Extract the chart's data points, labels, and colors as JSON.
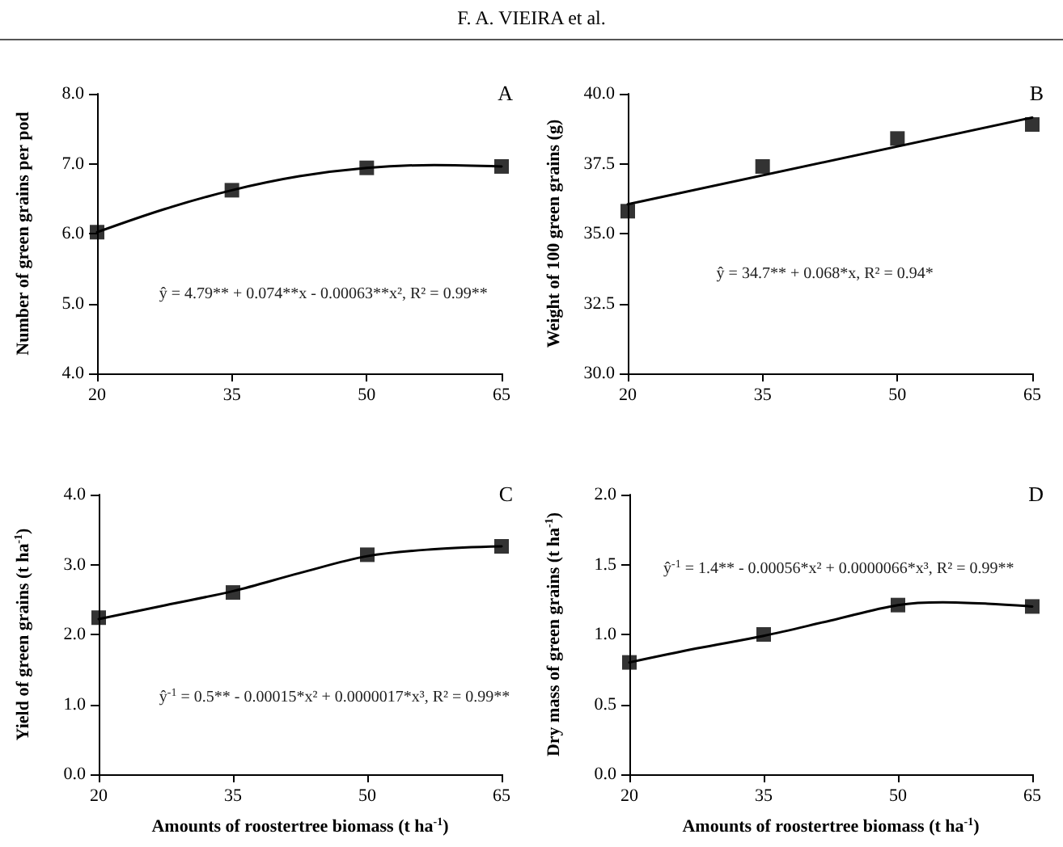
{
  "chart_data": [
    {
      "type": "scatter",
      "title": "A",
      "ylabel": "Number of green grains per pod",
      "annotations": [
        "F. A. VIEIRA et al.",
        "ŷ = 4.79** + 0.074**x - 0.00063**x², R² = 0.99**"
      ],
      "xlim": [
        20,
        65
      ],
      "xticks": [
        20,
        35,
        50,
        65
      ],
      "ylim": [
        4,
        8
      ],
      "yticks": [
        {
          "value": 4,
          "label": "4.0"
        },
        {
          "value": 5,
          "label": "5.0"
        },
        {
          "value": 6,
          "label": "6.0"
        },
        {
          "value": 7,
          "label": "7.0"
        },
        {
          "value": 8,
          "label": "8.0"
        }
      ],
      "grid": false,
      "series": [
        {
          "marker": "square",
          "color": "#000000",
          "x": [
            20,
            35,
            50,
            65
          ],
          "values": [
            6.02,
            6.62,
            6.94,
            6.96
          ]
        },
        {
          "type": "line",
          "marker": "none",
          "line_style": "solid",
          "color": "#000000",
          "x": [
            20,
            27.5,
            35,
            42.5,
            50,
            57.5,
            65
          ],
          "values": [
            6.02,
            6.35,
            6.62,
            6.82,
            6.94,
            6.98,
            6.96
          ]
        }
      ]
    },
    {
      "type": "scatter",
      "title": "B",
      "ylabel": "Weight of 100 green grains (g)",
      "annotations": [
        "ŷ = 34.7** + 0.068*x, R² = 0.94*"
      ],
      "xlim": [
        20,
        65
      ],
      "xticks": [
        20,
        35,
        50,
        65
      ],
      "ylim": [
        30,
        40
      ],
      "yticks": [
        {
          "value": 30,
          "label": "30.0"
        },
        32.5,
        {
          "value": 35,
          "label": "35.0"
        },
        37.5,
        {
          "value": 40,
          "label": "40.0"
        }
      ],
      "grid": false,
      "series": [
        {
          "marker": "square",
          "color": "#000000",
          "x": [
            20,
            35,
            50,
            65
          ],
          "values": [
            35.8,
            37.4,
            38.4,
            38.9
          ]
        },
        {
          "type": "line",
          "marker": "none",
          "line_style": "solid",
          "color": "#000000",
          "x": [
            20,
            65
          ],
          "values": [
            36.05,
            39.15
          ]
        }
      ]
    },
    {
      "type": "scatter",
      "title": "C",
      "xlabel": "Amounts of roostertree biomass (t ha$^{-1}$)",
      "ylabel": "Yield of green grains (t ha$^{-1}$)",
      "annotations": [
        "ŷ$^{-1}$ = 0.5** - 0.00015*x² + 0.0000017*x³, R² = 0.99**"
      ],
      "xlim": [
        20,
        65
      ],
      "xticks": [
        20,
        35,
        50,
        65
      ],
      "ylim": [
        0,
        4
      ],
      "yticks": [
        {
          "value": 0,
          "label": "0.0"
        },
        {
          "value": 1,
          "label": "1.0"
        },
        {
          "value": 2,
          "label": "2.0"
        },
        {
          "value": 3,
          "label": "3.0"
        },
        {
          "value": 4,
          "label": "4.0"
        }
      ],
      "grid": false,
      "series": [
        {
          "marker": "square",
          "color": "#000000",
          "x": [
            20,
            35,
            50,
            65
          ],
          "values": [
            2.24,
            2.6,
            3.14,
            3.26
          ]
        },
        {
          "type": "line",
          "marker": "none",
          "line_style": "solid",
          "color": "#000000",
          "x": [
            20,
            27.5,
            35,
            42.5,
            50,
            57.5,
            65
          ],
          "values": [
            2.22,
            2.42,
            2.62,
            2.88,
            3.12,
            3.22,
            3.26
          ]
        }
      ]
    },
    {
      "type": "scatter",
      "title": "D",
      "xlabel": "Amounts of roostertree biomass (t ha$^{-1}$)",
      "ylabel": "Dry mass of green grains (t ha$^{-1}$)",
      "annotations": [
        "ŷ$^{-1}$ = 1.4** - 0.00056*x² + 0.0000066*x³, R² = 0.99**"
      ],
      "xlim": [
        20,
        65
      ],
      "xticks": [
        20,
        35,
        50,
        65
      ],
      "ylim": [
        0,
        2
      ],
      "yticks": [
        {
          "value": 0,
          "label": "0.0"
        },
        {
          "value": 0.5,
          "label": "0.5"
        },
        {
          "value": 1,
          "label": "1.0"
        },
        {
          "value": 1.5,
          "label": "1.5"
        },
        {
          "value": 2,
          "label": "2.0"
        }
      ],
      "grid": false,
      "series": [
        {
          "marker": "square",
          "color": "#000000",
          "x": [
            20,
            35,
            50,
            65
          ],
          "values": [
            0.8,
            1.0,
            1.21,
            1.2
          ]
        },
        {
          "type": "line",
          "marker": "none",
          "line_style": "solid",
          "color": "#000000",
          "x": [
            20,
            27.5,
            35,
            42.5,
            50,
            55,
            60,
            65
          ],
          "values": [
            0.8,
            0.9,
            0.99,
            1.1,
            1.21,
            1.23,
            1.22,
            1.2
          ]
        }
      ]
    }
  ]
}
